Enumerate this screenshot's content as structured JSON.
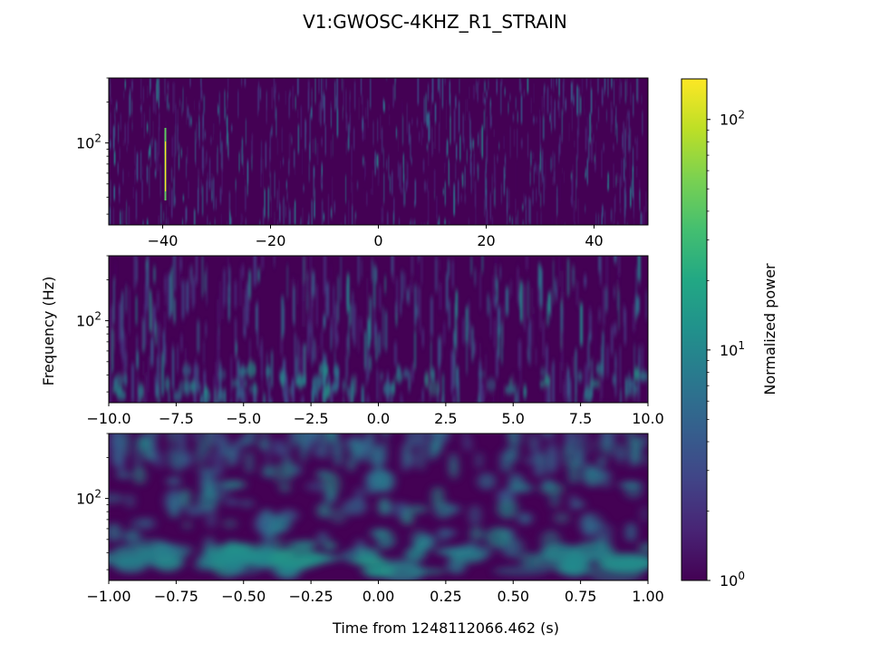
{
  "figure": {
    "title": "V1:GWOSC-4KHZ_R1_STRAIN",
    "colormap": "viridis",
    "background": "#ffffff",
    "panel_base_color": "#440154"
  },
  "chart_data": [
    {
      "type": "heatmap",
      "panel": "top",
      "x_range": [
        -50,
        50
      ],
      "x_ticks": [
        -40,
        -20,
        0,
        20,
        40
      ],
      "x_tick_labels": [
        "−40",
        "−20",
        "0",
        "20",
        "40"
      ],
      "y_scale": "log",
      "y_range_hz": [
        25,
        300
      ],
      "y_tick_values": [
        100
      ],
      "y_tick_labels": [
        "10^2"
      ],
      "xlabel": "",
      "ylabel": "",
      "features": [
        {
          "type": "glitch",
          "time": -39.5,
          "power": 140
        }
      ],
      "texture": "fine vertical streaks, mostly low power"
    },
    {
      "type": "heatmap",
      "panel": "middle",
      "x_range": [
        -10,
        10
      ],
      "x_ticks": [
        -10,
        -7.5,
        -5,
        -2.5,
        0,
        2.5,
        5,
        7.5,
        10
      ],
      "x_tick_labels": [
        "−10.0",
        "−7.5",
        "−5.0",
        "−2.5",
        "0.0",
        "2.5",
        "5.0",
        "7.5",
        "10.0"
      ],
      "y_scale": "log",
      "y_range_hz": [
        25,
        300
      ],
      "y_tick_values": [
        100
      ],
      "y_tick_labels": [
        "10^2"
      ],
      "xlabel": "",
      "ylabel": "Frequency (Hz)",
      "texture": "medium vertical streaks with blobs near low frequency"
    },
    {
      "type": "heatmap",
      "panel": "bottom",
      "x_range": [
        -1,
        1
      ],
      "x_ticks": [
        -1,
        -0.75,
        -0.5,
        -0.25,
        0,
        0.25,
        0.5,
        0.75,
        1
      ],
      "x_tick_labels": [
        "−1.00",
        "−0.75",
        "−0.50",
        "−0.25",
        "0.00",
        "0.25",
        "0.50",
        "0.75",
        "1.00"
      ],
      "y_scale": "log",
      "y_range_hz": [
        25,
        300
      ],
      "y_tick_values": [
        100
      ],
      "y_tick_labels": [
        "10^2"
      ],
      "xlabel": "Time from 1248112066.462 (s)",
      "ylabel": "",
      "texture": "broad blobs and wisps"
    }
  ],
  "colorbar": {
    "label": "Normalized power",
    "scale": "log",
    "range": [
      1,
      150
    ],
    "tick_values": [
      1,
      10,
      100
    ],
    "tick_labels": [
      "10^0",
      "10^1",
      "10^2"
    ]
  }
}
